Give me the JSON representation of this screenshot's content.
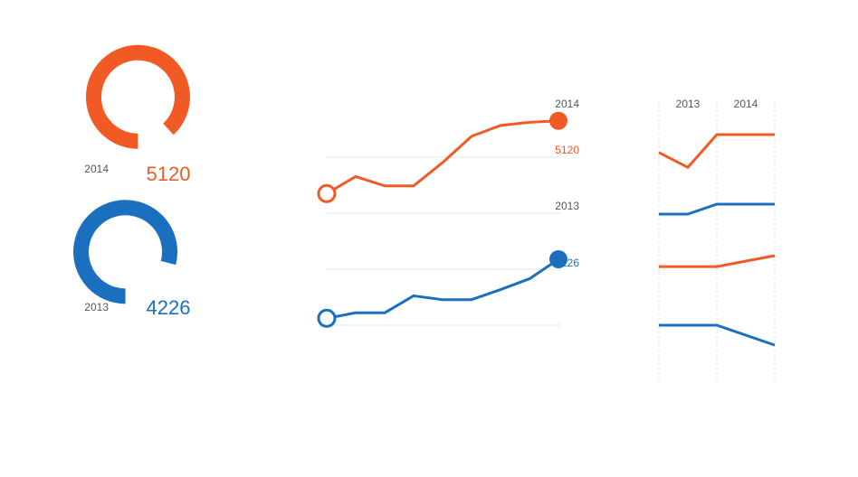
{
  "colors": {
    "orange": "#f15a24",
    "blue": "#1a6fbf",
    "grid": "#ececec",
    "label": "#555555"
  },
  "chart_data": [
    {
      "type": "donut",
      "segments": [
        {
          "year": "2014",
          "value": 5120,
          "value_label": "5120",
          "fraction": 0.88,
          "color": "#f15a24"
        },
        {
          "year": "2013",
          "value": 4226,
          "value_label": "4226",
          "fraction": 0.79,
          "color": "#1a6fbf"
        }
      ]
    },
    {
      "type": "line",
      "series": [
        {
          "name": "2014",
          "end_label": "5120",
          "color": "#f15a24",
          "values": [
            4650,
            4760,
            4700,
            4700,
            4850,
            5020,
            5090,
            5110,
            5120
          ]
        },
        {
          "name": "2013",
          "end_label": "4226",
          "color": "#1a6fbf",
          "values": [
            3845,
            3880,
            3880,
            3990,
            3965,
            3965,
            4030,
            4100,
            4226
          ]
        }
      ],
      "ylim": [
        3800,
        5200
      ],
      "grid": true
    },
    {
      "type": "line",
      "categories": [
        "2013",
        "2014"
      ],
      "x": [
        0,
        1,
        2,
        3
      ],
      "series": [
        {
          "color": "#f15a24",
          "values": [
            6.2,
            4.7,
            8.0,
            8.0
          ]
        },
        {
          "color": "#1a6fbf",
          "values": [
            6.0,
            6.0,
            7.0,
            7.0
          ]
        },
        {
          "color": "#f15a24",
          "values": [
            5.5,
            5.5,
            5.5,
            6.6
          ]
        },
        {
          "color": "#1a6fbf",
          "values": [
            6.5,
            6.5,
            6.5,
            4.5
          ]
        }
      ],
      "grid": true
    }
  ]
}
